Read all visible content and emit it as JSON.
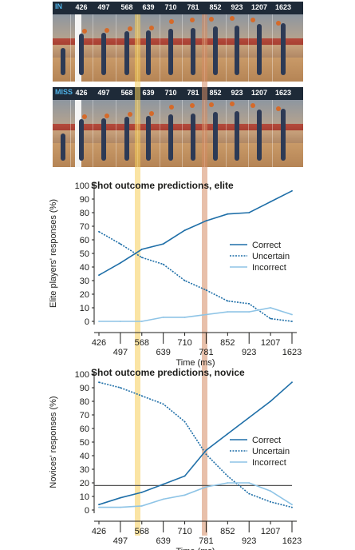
{
  "strips": [
    {
      "label": "IN",
      "times": [
        "426",
        "497",
        "568",
        "639",
        "710",
        "781",
        "852",
        "923",
        "1207",
        "1623"
      ]
    },
    {
      "label": "MISS",
      "times": [
        "426",
        "497",
        "568",
        "639",
        "710",
        "781",
        "852",
        "923",
        "1207",
        "1623"
      ]
    }
  ],
  "colors": {
    "correct": "#1f6fa8",
    "uncertain": "#1f6fa8",
    "incorrect": "#8ec4e6",
    "highlight_568": "#f6d77a",
    "highlight_781": "#d9957a",
    "strip_bar": "#1e2a38",
    "in_label": "#4fb3e8",
    "ref_line": "#555555"
  },
  "chart_data": [
    {
      "type": "line",
      "title": "Shot outcome predictions, elite",
      "ylabel": "Elite players' responses (%)",
      "xlabel": "Time (ms)",
      "categories": [
        "426",
        "497",
        "568",
        "639",
        "710",
        "781",
        "852",
        "923",
        "1207",
        "1623"
      ],
      "yticks": [
        "0",
        "10",
        "20",
        "30",
        "40",
        "50",
        "60",
        "70",
        "80",
        "90",
        "100"
      ],
      "ylim": [
        0,
        100
      ],
      "series": [
        {
          "name": "Correct",
          "style": "solid",
          "values": [
            34,
            43,
            53,
            57,
            67,
            74,
            79,
            80,
            88,
            96
          ]
        },
        {
          "name": "Uncertain",
          "style": "dotted",
          "values": [
            66,
            57,
            47,
            42,
            30,
            23,
            15,
            13,
            2,
            0
          ]
        },
        {
          "name": "Incorrect",
          "style": "solid-light",
          "values": [
            0,
            0,
            0,
            3,
            3,
            5,
            7,
            7,
            10,
            5
          ]
        }
      ],
      "legend": "right",
      "highlights": [
        "568",
        "781"
      ]
    },
    {
      "type": "line",
      "title": "Shot outcome predictions, novice",
      "ylabel": "Novices' responses (%)",
      "xlabel": "Time (ms)",
      "categories": [
        "426",
        "497",
        "568",
        "639",
        "710",
        "781",
        "852",
        "923",
        "1207",
        "1623"
      ],
      "yticks": [
        "0",
        "10",
        "20",
        "30",
        "40",
        "50",
        "60",
        "70",
        "80",
        "90",
        "100"
      ],
      "ylim": [
        0,
        100
      ],
      "series": [
        {
          "name": "Correct",
          "style": "solid",
          "values": [
            4,
            9,
            13,
            19,
            25,
            44,
            56,
            68,
            80,
            94
          ]
        },
        {
          "name": "Uncertain",
          "style": "dotted",
          "values": [
            94,
            90,
            84,
            78,
            65,
            41,
            25,
            12,
            6,
            2
          ]
        },
        {
          "name": "Incorrect",
          "style": "solid-light",
          "values": [
            2,
            2,
            3,
            8,
            11,
            17,
            20,
            20,
            14,
            4
          ]
        }
      ],
      "reference_line": 18,
      "legend": "right",
      "highlights": [
        "568",
        "781"
      ]
    }
  ]
}
